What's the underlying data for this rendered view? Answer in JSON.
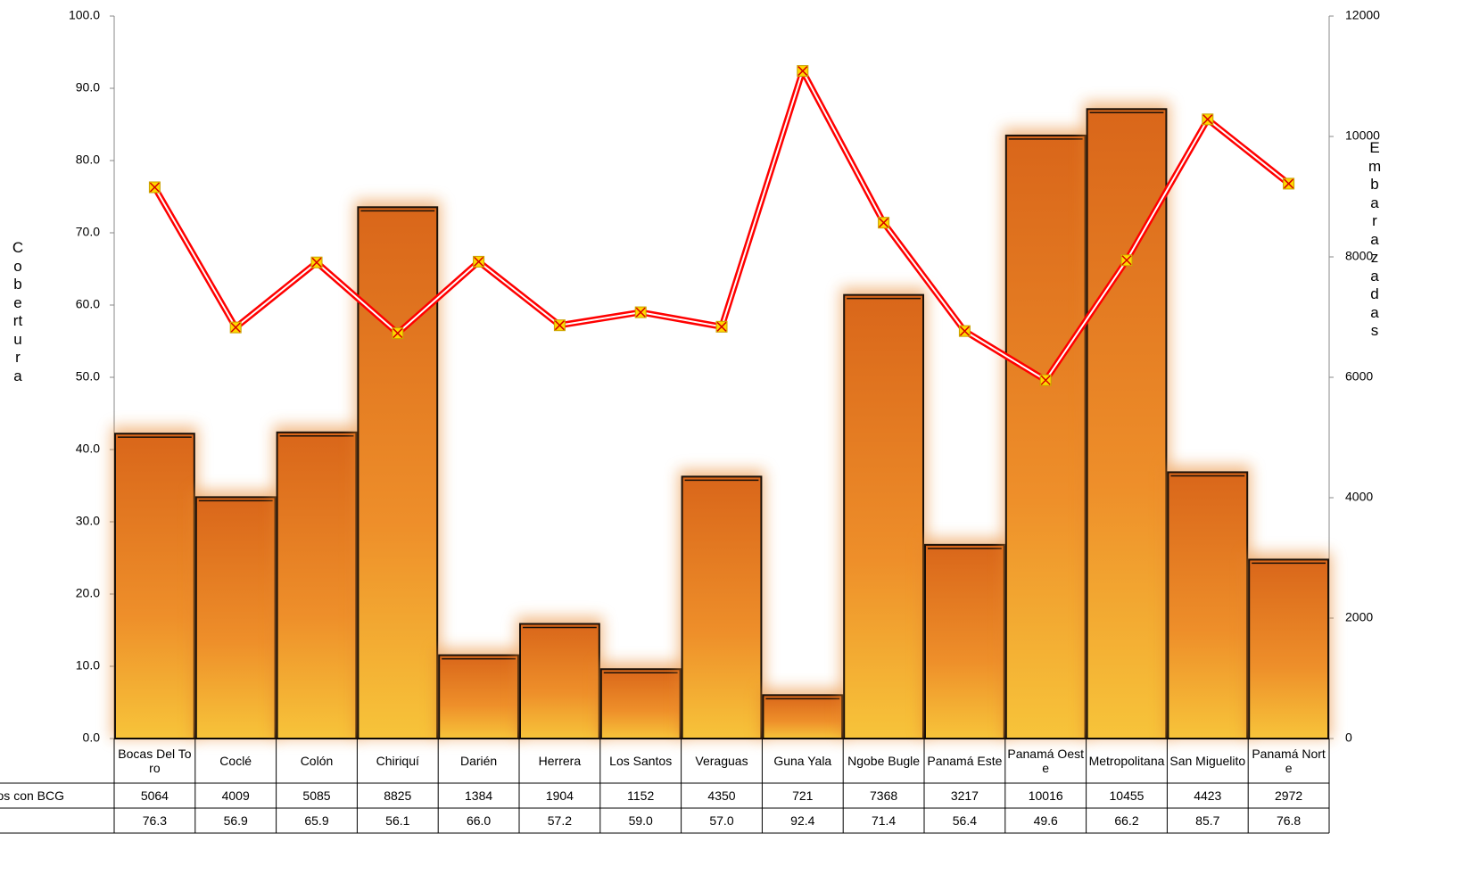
{
  "chart_data": {
    "type": "bar-line",
    "categories": [
      "Bocas Del Toro",
      "Coclé",
      "Colón",
      "Chiriquí",
      "Darién",
      "Herrera",
      "Los Santos",
      "Veraguas",
      "Guna Yala",
      "Ngobe Bugle",
      "Panamá Este",
      "Panamá Oeste",
      "Metropolitana",
      "San Miguelito",
      "Panamá Norte"
    ],
    "series": [
      {
        "name": "Captados con BCG",
        "type": "bar",
        "axis": "y2",
        "color": "#e8862a",
        "values": [
          5064,
          4009,
          5085,
          8825,
          1384,
          1904,
          1152,
          4350,
          721,
          7368,
          3217,
          10016,
          10455,
          4423,
          2972
        ]
      },
      {
        "type": "line",
        "axis": "y",
        "color": "#ff0000",
        "values": [
          76.3,
          56.9,
          65.9,
          56.1,
          66.0,
          57.2,
          59.0,
          57.0,
          92.4,
          71.4,
          56.4,
          49.6,
          66.2,
          85.7,
          76.8
        ],
        "value_labels": [
          "76.3",
          "56.9",
          "65.9",
          "56.1",
          "66.0",
          "57.2",
          "59.0",
          "57.0",
          "92.4",
          "71.4",
          "56.4",
          "49.6",
          "66.2",
          "85.7",
          "76.8"
        ]
      }
    ],
    "y_label": "Cobertura",
    "y2_label": "Embarazadas",
    "ylim": [
      0,
      100
    ],
    "yticks": [
      {
        "value": 0,
        "label": "0.0"
      },
      {
        "value": 10,
        "label": "10.0"
      },
      {
        "value": 20,
        "label": "20.0"
      },
      {
        "value": 30,
        "label": "30.0"
      },
      {
        "value": 40,
        "label": "40.0"
      },
      {
        "value": 50,
        "label": "50.0"
      },
      {
        "value": 60,
        "label": "60.0"
      },
      {
        "value": 70,
        "label": "70.0"
      },
      {
        "value": 80,
        "label": "80.0"
      },
      {
        "value": 90,
        "label": "90.0"
      },
      {
        "value": 100,
        "label": "100.0"
      }
    ],
    "y2lim": [
      0,
      12000
    ],
    "y2ticks": [
      0,
      2000,
      4000,
      6000,
      8000,
      10000,
      12000
    ],
    "grid": false
  }
}
